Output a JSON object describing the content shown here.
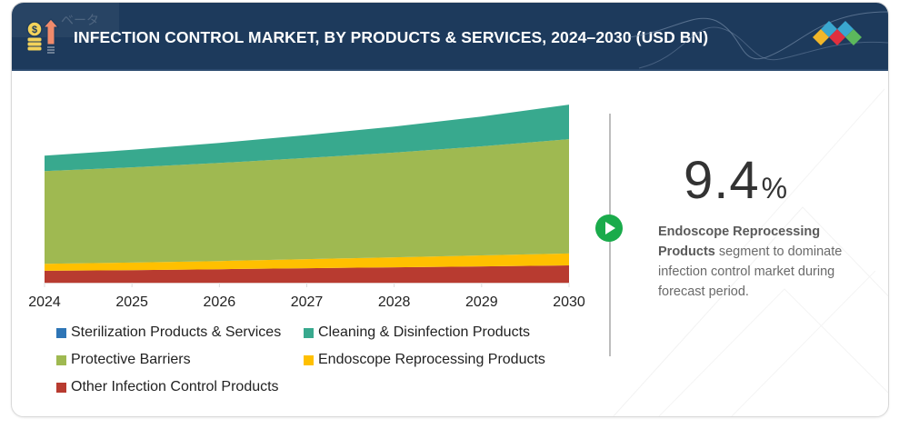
{
  "header": {
    "title": "INFECTION CONTROL MARKET, BY PRODUCTS & SERVICES, 2024–2030 (USD BN)",
    "overlay_label": "ベータ",
    "icon": "money-growth-icon",
    "logo": "diamond-logo"
  },
  "colors": {
    "header_bg": "#1d3a5c",
    "sterilization": "#2e75b6",
    "cleaning": "#38a98e",
    "protective": "#9fb951",
    "endoscope": "#ffc000",
    "other": "#b83b30",
    "accent_green": "#1aab4b"
  },
  "chart_data": {
    "type": "area",
    "stacked": true,
    "title": "INFECTION CONTROL MARKET, BY PRODUCTS & SERVICES, 2024–2030 (USD BN)",
    "xlabel": "",
    "ylabel": "USD BN",
    "x": [
      "2024",
      "2025",
      "2026",
      "2027",
      "2028",
      "2029",
      "2030"
    ],
    "ylim": [
      0,
      58
    ],
    "grid": false,
    "legend_position": "bottom",
    "series": [
      {
        "name": "Other Infection Control Products",
        "color": "#b83b30",
        "values": [
          3.8,
          4.0,
          4.3,
          4.6,
          4.9,
          5.2,
          5.5
        ]
      },
      {
        "name": "Endoscope Reprocessing Products",
        "color": "#ffc000",
        "values": [
          2.2,
          2.4,
          2.6,
          2.9,
          3.2,
          3.5,
          3.8
        ]
      },
      {
        "name": "Protective Barriers",
        "color": "#9fb951",
        "values": [
          29.6,
          30.4,
          31.3,
          32.3,
          33.4,
          34.8,
          36.5
        ]
      },
      {
        "name": "Cleaning & Disinfection Products",
        "color": "#38a98e",
        "values": [
          4.9,
          5.6,
          6.4,
          7.3,
          8.3,
          9.5,
          11.0
        ]
      },
      {
        "name": "Sterilization Products & Services",
        "color": "#2e75b6",
        "values": [
          0.0,
          0.0,
          0.0,
          0.0,
          0.0,
          0.0,
          0.0
        ]
      }
    ]
  },
  "legend": [
    {
      "label": "Sterilization Products & Services",
      "color": "#2e75b6"
    },
    {
      "label": "Cleaning & Disinfection Products",
      "color": "#38a98e"
    },
    {
      "label": "Protective Barriers",
      "color": "#9fb951"
    },
    {
      "label": "Endoscope Reprocessing Products",
      "color": "#ffc000"
    },
    {
      "label": "Other Infection Control Products",
      "color": "#b83b30"
    }
  ],
  "highlight": {
    "value": "9.4",
    "unit": "%",
    "segment_bold": "Endoscope Reprocessing Products",
    "text": " segment to dominate infection control market during forecast period."
  }
}
